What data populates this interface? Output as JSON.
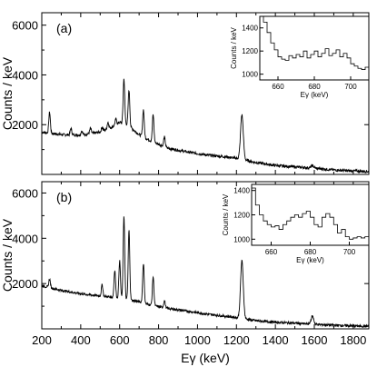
{
  "chart_data": [
    {
      "type": "line",
      "panel_label": "(a)",
      "xlabel": "",
      "ylabel": "Counts / keV",
      "xlim": [
        200,
        1880
      ],
      "ylim": [
        0,
        6500
      ],
      "x_ticks": [],
      "y_ticks": [
        2000,
        4000,
        6000
      ],
      "y_tick_labels": [
        "2000",
        "4000",
        "6000"
      ],
      "grid": false,
      "background_curve": [
        [
          200,
          1700
        ],
        [
          300,
          1600
        ],
        [
          400,
          1580
        ],
        [
          500,
          1700
        ],
        [
          560,
          1900
        ],
        [
          600,
          2100
        ],
        [
          640,
          2000
        ],
        [
          700,
          1600
        ],
        [
          760,
          1350
        ],
        [
          850,
          1050
        ],
        [
          950,
          900
        ],
        [
          1050,
          780
        ],
        [
          1150,
          700
        ],
        [
          1200,
          650
        ],
        [
          1300,
          480
        ],
        [
          1400,
          360
        ],
        [
          1500,
          300
        ],
        [
          1600,
          250
        ],
        [
          1700,
          180
        ],
        [
          1800,
          140
        ],
        [
          1880,
          120
        ]
      ],
      "peaks": [
        {
          "x": 240,
          "height": 2500
        },
        {
          "x": 350,
          "height": 1850
        },
        {
          "x": 405,
          "height": 1750
        },
        {
          "x": 450,
          "height": 1850
        },
        {
          "x": 510,
          "height": 1900
        },
        {
          "x": 540,
          "height": 2100
        },
        {
          "x": 580,
          "height": 2200
        },
        {
          "x": 622,
          "height": 3850
        },
        {
          "x": 648,
          "height": 3400
        },
        {
          "x": 722,
          "height": 2600
        },
        {
          "x": 772,
          "height": 2400
        },
        {
          "x": 830,
          "height": 1500
        },
        {
          "x": 1228,
          "height": 2400
        },
        {
          "x": 1590,
          "height": 350
        }
      ],
      "inset": {
        "type": "line",
        "xlabel": "Eγ (keV)",
        "ylabel": "Counts / keV",
        "xlim": [
          650,
          710
        ],
        "ylim": [
          950,
          1500
        ],
        "x_ticks": [
          660,
          680,
          700
        ],
        "y_ticks": [
          1000,
          1200,
          1400
        ],
        "values": [
          [
            650,
            1500
          ],
          [
            652,
            1450
          ],
          [
            654,
            1360
          ],
          [
            656,
            1270
          ],
          [
            658,
            1210
          ],
          [
            660,
            1150
          ],
          [
            662,
            1130
          ],
          [
            664,
            1120
          ],
          [
            666,
            1160
          ],
          [
            668,
            1140
          ],
          [
            670,
            1170
          ],
          [
            672,
            1150
          ],
          [
            674,
            1200
          ],
          [
            676,
            1140
          ],
          [
            678,
            1170
          ],
          [
            680,
            1200
          ],
          [
            682,
            1150
          ],
          [
            684,
            1180
          ],
          [
            686,
            1220
          ],
          [
            688,
            1160
          ],
          [
            690,
            1180
          ],
          [
            692,
            1210
          ],
          [
            694,
            1150
          ],
          [
            696,
            1180
          ],
          [
            698,
            1140
          ],
          [
            700,
            1090
          ],
          [
            702,
            1070
          ],
          [
            704,
            1050
          ],
          [
            706,
            1040
          ],
          [
            708,
            1060
          ]
        ]
      }
    },
    {
      "type": "line",
      "panel_label": "(b)",
      "xlabel": "Eγ (keV)",
      "ylabel": "Counts / keV",
      "xlim": [
        200,
        1880
      ],
      "ylim": [
        0,
        6500
      ],
      "x_ticks": [
        200,
        400,
        600,
        800,
        1000,
        1200,
        1400,
        1600,
        1800
      ],
      "x_tick_labels": [
        "200",
        "400",
        "600",
        "800",
        "1000",
        "1200",
        "1400",
        "1600",
        "1800"
      ],
      "y_ticks": [
        2000,
        4000,
        6000
      ],
      "y_tick_labels": [
        "2000",
        "4000",
        "6000"
      ],
      "grid": false,
      "background_curve": [
        [
          200,
          1900
        ],
        [
          300,
          1700
        ],
        [
          400,
          1550
        ],
        [
          500,
          1450
        ],
        [
          560,
          1400
        ],
        [
          600,
          1350
        ],
        [
          700,
          1200
        ],
        [
          760,
          1050
        ],
        [
          850,
          900
        ],
        [
          950,
          780
        ],
        [
          1050,
          650
        ],
        [
          1150,
          550
        ],
        [
          1200,
          500
        ],
        [
          1300,
          360
        ],
        [
          1400,
          290
        ],
        [
          1500,
          250
        ],
        [
          1600,
          200
        ],
        [
          1700,
          160
        ],
        [
          1800,
          130
        ],
        [
          1880,
          110
        ]
      ],
      "peaks": [
        {
          "x": 240,
          "height": 2200
        },
        {
          "x": 510,
          "height": 1950
        },
        {
          "x": 575,
          "height": 2600
        },
        {
          "x": 600,
          "height": 3000
        },
        {
          "x": 622,
          "height": 5000
        },
        {
          "x": 648,
          "height": 4350
        },
        {
          "x": 722,
          "height": 2900
        },
        {
          "x": 772,
          "height": 2300
        },
        {
          "x": 830,
          "height": 1250
        },
        {
          "x": 1228,
          "height": 3000
        },
        {
          "x": 1590,
          "height": 550
        }
      ],
      "inset": {
        "type": "line",
        "xlabel": "Eγ (keV)",
        "ylabel": "Counts / keV",
        "xlim": [
          650,
          710
        ],
        "ylim": [
          950,
          1450
        ],
        "x_ticks": [
          660,
          680,
          700
        ],
        "y_ticks": [
          1000,
          1200,
          1400
        ],
        "values": [
          [
            650,
            1420
          ],
          [
            652,
            1280
          ],
          [
            654,
            1200
          ],
          [
            656,
            1150
          ],
          [
            658,
            1120
          ],
          [
            660,
            1100
          ],
          [
            662,
            1110
          ],
          [
            664,
            1080
          ],
          [
            666,
            1120
          ],
          [
            668,
            1150
          ],
          [
            670,
            1180
          ],
          [
            672,
            1200
          ],
          [
            674,
            1180
          ],
          [
            676,
            1210
          ],
          [
            678,
            1230
          ],
          [
            680,
            1180
          ],
          [
            682,
            1120
          ],
          [
            684,
            1100
          ],
          [
            686,
            1180
          ],
          [
            688,
            1210
          ],
          [
            690,
            1180
          ],
          [
            692,
            1120
          ],
          [
            694,
            1050
          ],
          [
            696,
            1080
          ],
          [
            698,
            1020
          ],
          [
            700,
            1000
          ],
          [
            702,
            1010
          ],
          [
            704,
            1020
          ],
          [
            706,
            1010
          ],
          [
            708,
            1020
          ]
        ]
      }
    }
  ]
}
